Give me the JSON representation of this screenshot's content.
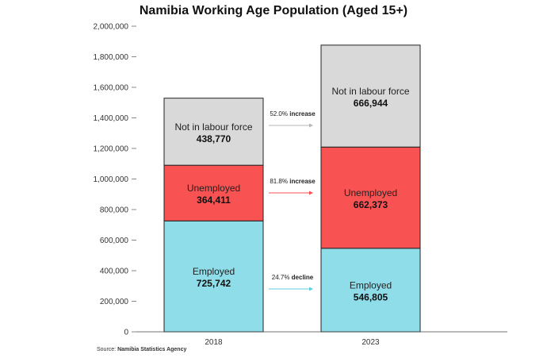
{
  "chart_data": {
    "type": "bar",
    "stacked": true,
    "title": "Namibia Working Age Population (Aged 15+)",
    "categories": [
      "2018",
      "2023"
    ],
    "ylim": [
      0,
      2000000
    ],
    "yticks": [
      0,
      200000,
      400000,
      600000,
      800000,
      1000000,
      1200000,
      1400000,
      1600000,
      1800000,
      2000000
    ],
    "ytick_labels": [
      "0",
      "200,000",
      "400,000",
      "600,000",
      "800,000",
      "1,000,000",
      "1,200,000",
      "1,400,000",
      "1,600,000",
      "1,800,000",
      "2,000,000"
    ],
    "grid": false,
    "series": [
      {
        "name": "Employed",
        "color": "#8edde8",
        "values": [
          725742,
          546805
        ],
        "value_labels": [
          "725,742",
          "546,805"
        ],
        "change_pct": "24.7%",
        "change_word": "decline"
      },
      {
        "name": "Unemployed",
        "color": "#f95252",
        "values": [
          364411,
          662373
        ],
        "value_labels": [
          "364,411",
          "662,373"
        ],
        "change_pct": "81.8%",
        "change_word": "increase"
      },
      {
        "name": "Not in labour force",
        "color": "#d9d9d9",
        "values": [
          438770,
          666944
        ],
        "value_labels": [
          "438,770",
          "666,944"
        ],
        "change_pct": "52.0%",
        "change_word": "increase"
      }
    ]
  },
  "source": {
    "prefix": "Source: ",
    "agency": "Namibia Statistics Agency"
  },
  "colors": {
    "arrow_grey": "#b5b5b5",
    "arrow_red": "#f95252",
    "arrow_cyan": "#5ccfe0"
  }
}
